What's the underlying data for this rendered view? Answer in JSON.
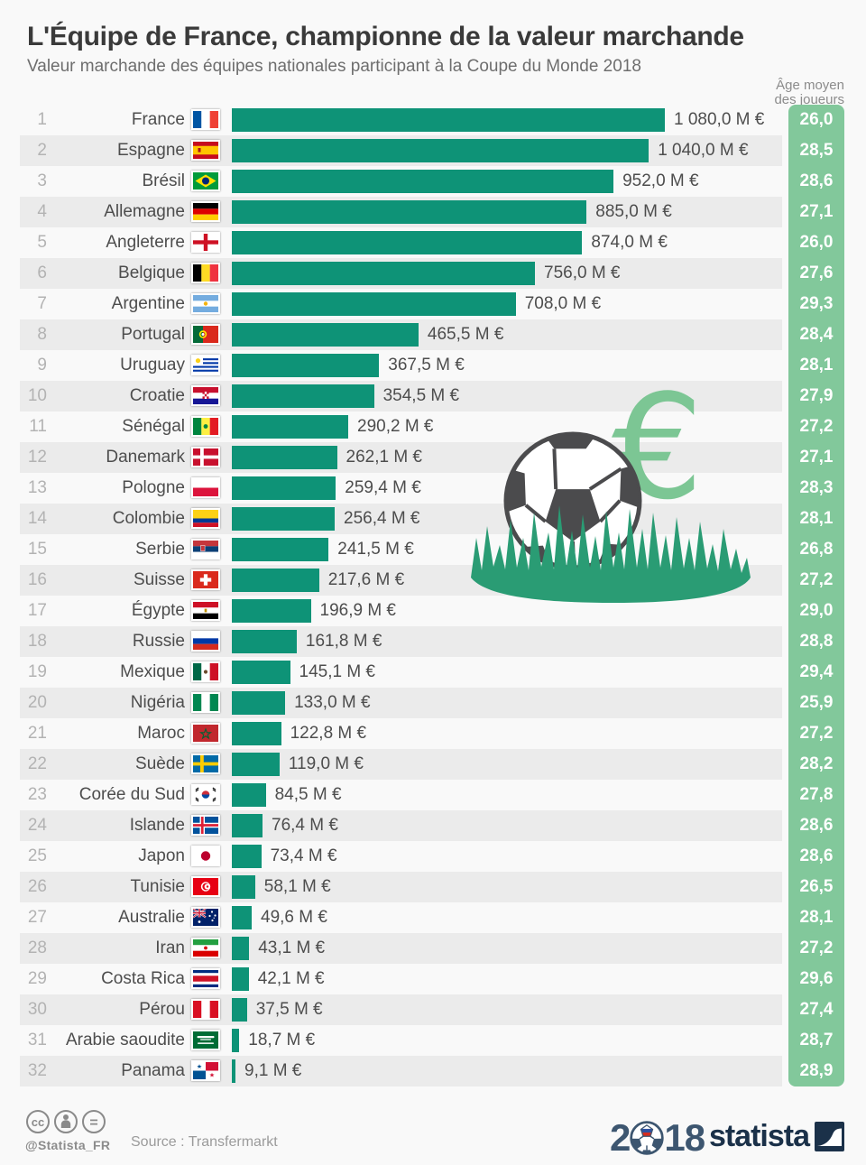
{
  "header": {
    "title": "L'Équipe de France, championne de la valeur marchande",
    "subtitle": "Valeur marchande des équipes nationales participant à la Coupe du Monde 2018",
    "age_line1": "Âge moyen",
    "age_line2": "des joueurs"
  },
  "rows": [
    {
      "rank": "1",
      "country": "France",
      "flag": "fr",
      "value": 1080.0,
      "value_label": "1 080,0 M €",
      "age_label": "26,0"
    },
    {
      "rank": "2",
      "country": "Espagne",
      "flag": "es",
      "value": 1040.0,
      "value_label": "1 040,0 M €",
      "age_label": "28,5"
    },
    {
      "rank": "3",
      "country": "Brésil",
      "flag": "br",
      "value": 952.0,
      "value_label": "952,0 M €",
      "age_label": "28,6"
    },
    {
      "rank": "4",
      "country": "Allemagne",
      "flag": "de",
      "value": 885.0,
      "value_label": "885,0 M €",
      "age_label": "27,1"
    },
    {
      "rank": "5",
      "country": "Angleterre",
      "flag": "eng",
      "value": 874.0,
      "value_label": "874,0 M €",
      "age_label": "26,0"
    },
    {
      "rank": "6",
      "country": "Belgique",
      "flag": "be",
      "value": 756.0,
      "value_label": "756,0 M €",
      "age_label": "27,6"
    },
    {
      "rank": "7",
      "country": "Argentine",
      "flag": "ar",
      "value": 708.0,
      "value_label": "708,0 M €",
      "age_label": "29,3"
    },
    {
      "rank": "8",
      "country": "Portugal",
      "flag": "pt",
      "value": 465.5,
      "value_label": "465,5 M €",
      "age_label": "28,4"
    },
    {
      "rank": "9",
      "country": "Uruguay",
      "flag": "uy",
      "value": 367.5,
      "value_label": "367,5 M €",
      "age_label": "28,1"
    },
    {
      "rank": "10",
      "country": "Croatie",
      "flag": "hr",
      "value": 354.5,
      "value_label": "354,5 M €",
      "age_label": "27,9"
    },
    {
      "rank": "11",
      "country": "Sénégal",
      "flag": "sn",
      "value": 290.2,
      "value_label": "290,2 M €",
      "age_label": "27,2"
    },
    {
      "rank": "12",
      "country": "Danemark",
      "flag": "dk",
      "value": 262.1,
      "value_label": "262,1 M €",
      "age_label": "27,1"
    },
    {
      "rank": "13",
      "country": "Pologne",
      "flag": "pl",
      "value": 259.4,
      "value_label": "259,4 M €",
      "age_label": "28,3"
    },
    {
      "rank": "14",
      "country": "Colombie",
      "flag": "co",
      "value": 256.4,
      "value_label": "256,4 M €",
      "age_label": "28,1"
    },
    {
      "rank": "15",
      "country": "Serbie",
      "flag": "rs",
      "value": 241.5,
      "value_label": "241,5 M €",
      "age_label": "26,8"
    },
    {
      "rank": "16",
      "country": "Suisse",
      "flag": "ch",
      "value": 217.6,
      "value_label": "217,6 M €",
      "age_label": "27,2"
    },
    {
      "rank": "17",
      "country": "Égypte",
      "flag": "eg",
      "value": 196.9,
      "value_label": "196,9 M €",
      "age_label": "29,0"
    },
    {
      "rank": "18",
      "country": "Russie",
      "flag": "ru",
      "value": 161.8,
      "value_label": "161,8 M €",
      "age_label": "28,8"
    },
    {
      "rank": "19",
      "country": "Mexique",
      "flag": "mx",
      "value": 145.1,
      "value_label": "145,1 M €",
      "age_label": "29,4"
    },
    {
      "rank": "20",
      "country": "Nigéria",
      "flag": "ng",
      "value": 133.0,
      "value_label": "133,0 M €",
      "age_label": "25,9"
    },
    {
      "rank": "21",
      "country": "Maroc",
      "flag": "ma",
      "value": 122.8,
      "value_label": "122,8 M €",
      "age_label": "27,2"
    },
    {
      "rank": "22",
      "country": "Suède",
      "flag": "se",
      "value": 119.0,
      "value_label": "119,0 M €",
      "age_label": "28,2"
    },
    {
      "rank": "23",
      "country": "Corée du Sud",
      "flag": "kr",
      "value": 84.5,
      "value_label": "84,5 M €",
      "age_label": "27,8"
    },
    {
      "rank": "24",
      "country": "Islande",
      "flag": "is",
      "value": 76.4,
      "value_label": "76,4 M €",
      "age_label": "28,6"
    },
    {
      "rank": "25",
      "country": "Japon",
      "flag": "jp",
      "value": 73.4,
      "value_label": "73,4 M €",
      "age_label": "28,6"
    },
    {
      "rank": "26",
      "country": "Tunisie",
      "flag": "tn",
      "value": 58.1,
      "value_label": "58,1 M €",
      "age_label": "26,5"
    },
    {
      "rank": "27",
      "country": "Australie",
      "flag": "au",
      "value": 49.6,
      "value_label": "49,6 M €",
      "age_label": "28,1"
    },
    {
      "rank": "28",
      "country": "Iran",
      "flag": "ir",
      "value": 43.1,
      "value_label": "43,1 M €",
      "age_label": "27,2"
    },
    {
      "rank": "29",
      "country": "Costa Rica",
      "flag": "cr",
      "value": 42.1,
      "value_label": "42,1 M €",
      "age_label": "29,6"
    },
    {
      "rank": "30",
      "country": "Pérou",
      "flag": "pe",
      "value": 37.5,
      "value_label": "37,5 M €",
      "age_label": "27,4"
    },
    {
      "rank": "31",
      "country": "Arabie saoudite",
      "flag": "sa",
      "value": 18.7,
      "value_label": "18,7 M €",
      "age_label": "28,7"
    },
    {
      "rank": "32",
      "country": "Panama",
      "flag": "pa",
      "value": 9.1,
      "value_label": "9,1 M €",
      "age_label": "28,9"
    }
  ],
  "footer": {
    "handle": "@Statista_FR",
    "source": "Source : Transfermarkt",
    "year_prefix": "2",
    "year_suffix": "18",
    "brand": "statista"
  },
  "colors": {
    "bar": "#0E9377",
    "age_column": "#82C89B",
    "stripe": "#EBEBEB",
    "background": "#F9F9F9",
    "grass": "#2A9C74",
    "euro_sign": "#7CC694",
    "ball_dark": "#4B4B4D",
    "brand_navy": "#1B3149",
    "worldcup_slate": "#3D5670"
  },
  "chart_data": {
    "type": "bar",
    "orientation": "horizontal",
    "title": "L'Équipe de France, championne de la valeur marchande",
    "subtitle": "Valeur marchande des équipes nationales participant à la Coupe du Monde 2018",
    "unit": "M €",
    "categories": [
      "France",
      "Espagne",
      "Brésil",
      "Allemagne",
      "Angleterre",
      "Belgique",
      "Argentine",
      "Portugal",
      "Uruguay",
      "Croatie",
      "Sénégal",
      "Danemark",
      "Pologne",
      "Colombie",
      "Serbie",
      "Suisse",
      "Égypte",
      "Russie",
      "Mexique",
      "Nigéria",
      "Maroc",
      "Suède",
      "Corée du Sud",
      "Islande",
      "Japon",
      "Tunisie",
      "Australie",
      "Iran",
      "Costa Rica",
      "Pérou",
      "Arabie saoudite",
      "Panama"
    ],
    "series": [
      {
        "name": "Valeur marchande (M €)",
        "values": [
          1080.0,
          1040.0,
          952.0,
          885.0,
          874.0,
          756.0,
          708.0,
          465.5,
          367.5,
          354.5,
          290.2,
          262.1,
          259.4,
          256.4,
          241.5,
          217.6,
          196.9,
          161.8,
          145.1,
          133.0,
          122.8,
          119.0,
          84.5,
          76.4,
          73.4,
          58.1,
          49.6,
          43.1,
          42.1,
          37.5,
          18.7,
          9.1
        ]
      },
      {
        "name": "Âge moyen des joueurs",
        "values": [
          26.0,
          28.5,
          28.6,
          27.1,
          26.0,
          27.6,
          29.3,
          28.4,
          28.1,
          27.9,
          27.2,
          27.1,
          28.3,
          28.1,
          26.8,
          27.2,
          29.0,
          28.8,
          29.4,
          25.9,
          27.2,
          28.2,
          27.8,
          28.6,
          28.6,
          26.5,
          28.1,
          27.2,
          29.6,
          27.4,
          28.7,
          28.9
        ]
      }
    ],
    "xlim": [
      0,
      1080
    ],
    "grid": false,
    "legend_position": "none"
  }
}
